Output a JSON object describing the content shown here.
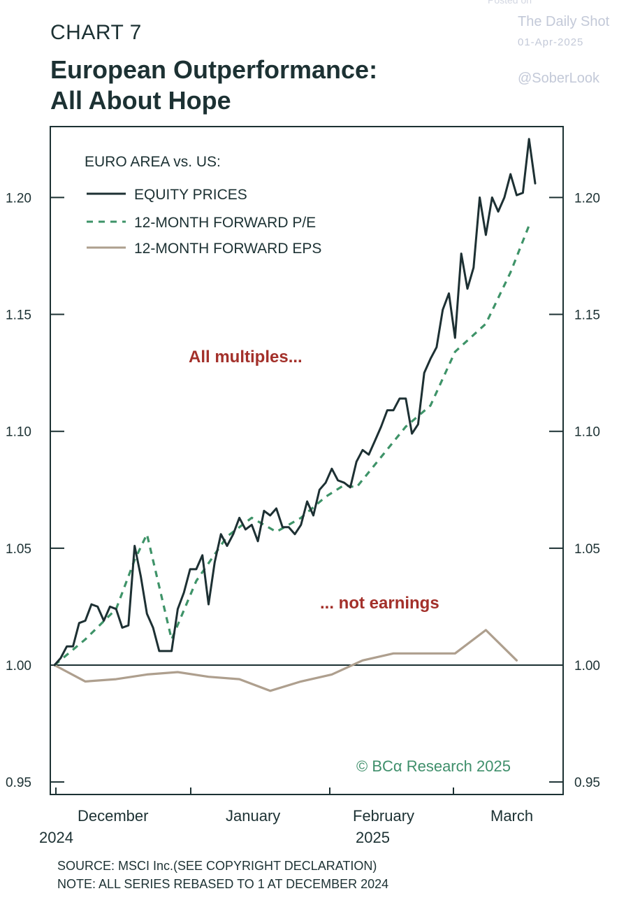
{
  "header": {
    "label": "CHART 7",
    "title_line1": "European Outperformance:",
    "title_line2": "All About Hope"
  },
  "watermark": {
    "posted": "Posted on",
    "name": "The Daily Shot",
    "date": "01-Apr-2025",
    "handle": "@SoberLook"
  },
  "footer": {
    "source": "SOURCE: MSCI Inc.(SEE COPYRIGHT DECLARATION)",
    "note": "NOTE: ALL SERIES REBASED TO 1 AT DECEMBER 2024"
  },
  "colors": {
    "equity": "#1d3033",
    "pe": "#3e9368",
    "eps": "#ae9f8e",
    "annotation": "#a3302a",
    "copyright": "#3f8f6b",
    "frame": "#1c3133"
  },
  "chart_data": {
    "type": "line",
    "legend_title": "EURO AREA vs. US:",
    "legend_position": "top-left",
    "ylim": [
      0.95,
      1.22
    ],
    "yticks": [
      0.95,
      1.0,
      1.05,
      1.1,
      1.15,
      1.2
    ],
    "ytick_labels": [
      "0.95",
      "1.00",
      "1.05",
      "1.10",
      "1.15",
      "1.20"
    ],
    "x_tick_labels": [
      "December",
      "January",
      "February",
      "March"
    ],
    "x_year_labels": [
      "2024",
      "2025"
    ],
    "reference_line": 1.0,
    "annotations": [
      "All multiples...",
      "... not earnings"
    ],
    "copyright": "© BCα Research 2025",
    "series": [
      {
        "name": "EQUITY PRICES",
        "style": "solid",
        "points": [
          [
            0,
            1.0
          ],
          [
            1,
            1.003
          ],
          [
            2,
            1.008
          ],
          [
            3,
            1.008
          ],
          [
            4,
            1.018
          ],
          [
            5,
            1.019
          ],
          [
            6,
            1.026
          ],
          [
            7,
            1.025
          ],
          [
            8,
            1.019
          ],
          [
            9,
            1.025
          ],
          [
            10,
            1.024
          ],
          [
            11,
            1.016
          ],
          [
            12,
            1.017
          ],
          [
            13,
            1.051
          ],
          [
            14,
            1.038
          ],
          [
            15,
            1.022
          ],
          [
            16,
            1.016
          ],
          [
            17,
            1.006
          ],
          [
            18,
            1.006
          ],
          [
            19,
            1.006
          ],
          [
            20,
            1.024
          ],
          [
            21,
            1.031
          ],
          [
            22,
            1.041
          ],
          [
            23,
            1.041
          ],
          [
            24,
            1.047
          ],
          [
            25,
            1.026
          ],
          [
            26,
            1.044
          ],
          [
            27,
            1.056
          ],
          [
            28,
            1.051
          ],
          [
            29,
            1.056
          ],
          [
            30,
            1.063
          ],
          [
            31,
            1.058
          ],
          [
            32,
            1.06
          ],
          [
            33,
            1.053
          ],
          [
            34,
            1.066
          ],
          [
            35,
            1.064
          ],
          [
            36,
            1.067
          ],
          [
            37,
            1.059
          ],
          [
            38,
            1.059
          ],
          [
            39,
            1.056
          ],
          [
            40,
            1.06
          ],
          [
            41,
            1.07
          ],
          [
            42,
            1.064
          ],
          [
            43,
            1.075
          ],
          [
            44,
            1.078
          ],
          [
            45,
            1.084
          ],
          [
            46,
            1.079
          ],
          [
            47,
            1.078
          ],
          [
            48,
            1.076
          ],
          [
            49,
            1.087
          ],
          [
            50,
            1.092
          ],
          [
            51,
            1.09
          ],
          [
            52,
            1.096
          ],
          [
            53,
            1.102
          ],
          [
            54,
            1.109
          ],
          [
            55,
            1.109
          ],
          [
            56,
            1.114
          ],
          [
            57,
            1.114
          ],
          [
            58,
            1.099
          ],
          [
            59,
            1.103
          ],
          [
            60,
            1.125
          ],
          [
            61,
            1.131
          ],
          [
            62,
            1.136
          ],
          [
            63,
            1.152
          ],
          [
            64,
            1.159
          ],
          [
            65,
            1.14
          ],
          [
            66,
            1.176
          ],
          [
            67,
            1.161
          ],
          [
            68,
            1.17
          ],
          [
            69,
            1.2
          ],
          [
            70,
            1.184
          ],
          [
            71,
            1.2
          ],
          [
            72,
            1.194
          ],
          [
            73,
            1.2
          ],
          [
            74,
            1.21
          ],
          [
            75,
            1.201
          ],
          [
            76,
            1.202
          ],
          [
            77,
            1.225
          ],
          [
            78,
            1.206
          ]
        ]
      },
      {
        "name": "12-MONTH FORWARD P/E",
        "style": "dashed",
        "points": [
          [
            0,
            1.0
          ],
          [
            5,
            1.011
          ],
          [
            10,
            1.024
          ],
          [
            13,
            1.045
          ],
          [
            15,
            1.056
          ],
          [
            19,
            1.011
          ],
          [
            23,
            1.036
          ],
          [
            28,
            1.055
          ],
          [
            32,
            1.063
          ],
          [
            36,
            1.057
          ],
          [
            40,
            1.063
          ],
          [
            44,
            1.072
          ],
          [
            47,
            1.077
          ],
          [
            49,
            1.076
          ],
          [
            57,
            1.102
          ],
          [
            61,
            1.111
          ],
          [
            65,
            1.134
          ],
          [
            70,
            1.146
          ],
          [
            74,
            1.168
          ],
          [
            77,
            1.188
          ]
        ]
      },
      {
        "name": "12-MONTH FORWARD EPS",
        "style": "solid",
        "points": [
          [
            0,
            1.0
          ],
          [
            5,
            0.993
          ],
          [
            10,
            0.994
          ],
          [
            15,
            0.996
          ],
          [
            20,
            0.997
          ],
          [
            25,
            0.995
          ],
          [
            30,
            0.994
          ],
          [
            35,
            0.989
          ],
          [
            40,
            0.993
          ],
          [
            45,
            0.996
          ],
          [
            50,
            1.002
          ],
          [
            55,
            1.005
          ],
          [
            60,
            1.005
          ],
          [
            65,
            1.005
          ],
          [
            70,
            1.015
          ],
          [
            75,
            1.002
          ]
        ]
      }
    ]
  }
}
